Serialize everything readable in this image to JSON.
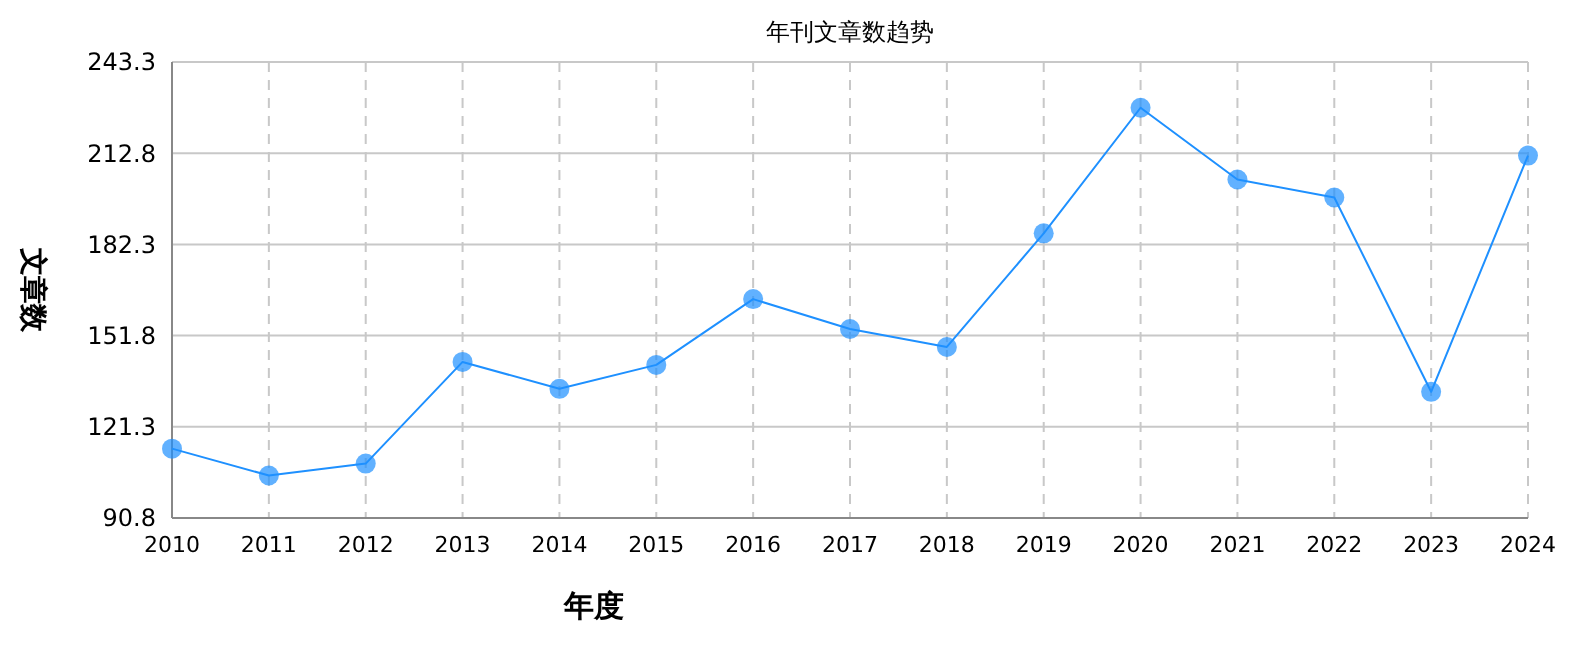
{
  "chart_data": {
    "type": "line",
    "title": "年刊文章数趋势",
    "xlabel": "年度",
    "ylabel": "文章数",
    "categories": [
      "2010",
      "2011",
      "2012",
      "2013",
      "2014",
      "2015",
      "2016",
      "2017",
      "2018",
      "2019",
      "2020",
      "2021",
      "2022",
      "2023",
      "2024"
    ],
    "series": [
      {
        "color": "#1e90ff",
        "values": [
          114,
          105,
          109,
          143,
          134,
          142,
          164,
          154,
          148,
          186,
          228,
          204,
          198,
          133,
          212
        ]
      }
    ],
    "ylim": [
      90.8,
      243.3
    ],
    "yticks": [
      90.8,
      121.3,
      151.8,
      182.3,
      212.8,
      243.3
    ],
    "grid": true,
    "marker": "circle",
    "line_style": "solid"
  }
}
